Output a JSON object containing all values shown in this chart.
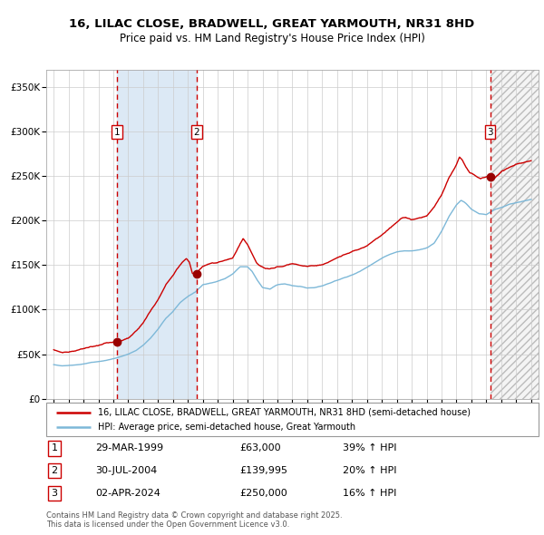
{
  "title_line1": "16, LILAC CLOSE, BRADWELL, GREAT YARMOUTH, NR31 8HD",
  "title_line2": "Price paid vs. HM Land Registry's House Price Index (HPI)",
  "legend_label1": "16, LILAC CLOSE, BRADWELL, GREAT YARMOUTH, NR31 8HD (semi-detached house)",
  "legend_label2": "HPI: Average price, semi-detached house, Great Yarmouth",
  "sale1_date": "29-MAR-1999",
  "sale1_price": 63000,
  "sale1_hpi": "39% ↑ HPI",
  "sale1_x": 1999.23,
  "sale2_date": "30-JUL-2004",
  "sale2_price": 139995,
  "sale2_hpi": "20% ↑ HPI",
  "sale2_x": 2004.58,
  "sale3_date": "02-APR-2024",
  "sale3_price": 250000,
  "sale3_hpi": "16% ↑ HPI",
  "sale3_x": 2024.25,
  "footer": "Contains HM Land Registry data © Crown copyright and database right 2025.\nThis data is licensed under the Open Government Licence v3.0.",
  "hpi_color": "#7db8d8",
  "price_color": "#cc0000",
  "marker_color": "#990000",
  "vline_color": "#cc0000",
  "shade1_color": "#dce9f5",
  "xlim_left": 1994.5,
  "xlim_right": 2027.5,
  "ylim_bottom": 0,
  "ylim_top": 370000,
  "yticks": [
    0,
    50000,
    100000,
    150000,
    200000,
    250000,
    300000,
    350000
  ],
  "xticks": [
    1995,
    1996,
    1997,
    1998,
    1999,
    2000,
    2001,
    2002,
    2003,
    2004,
    2005,
    2006,
    2007,
    2008,
    2009,
    2010,
    2011,
    2012,
    2013,
    2014,
    2015,
    2016,
    2017,
    2018,
    2019,
    2020,
    2021,
    2022,
    2023,
    2024,
    2025,
    2026,
    2027
  ],
  "hpi_anchors": [
    [
      1995.0,
      38000
    ],
    [
      1995.5,
      37000
    ],
    [
      1996.0,
      37500
    ],
    [
      1996.5,
      38000
    ],
    [
      1997.0,
      39000
    ],
    [
      1997.5,
      40500
    ],
    [
      1998.0,
      41500
    ],
    [
      1998.5,
      43000
    ],
    [
      1999.0,
      45000
    ],
    [
      1999.5,
      47000
    ],
    [
      2000.0,
      50000
    ],
    [
      2000.5,
      54000
    ],
    [
      2001.0,
      60000
    ],
    [
      2001.5,
      68000
    ],
    [
      2002.0,
      78000
    ],
    [
      2002.5,
      90000
    ],
    [
      2003.0,
      98000
    ],
    [
      2003.5,
      108000
    ],
    [
      2004.0,
      115000
    ],
    [
      2004.5,
      120000
    ],
    [
      2005.0,
      128000
    ],
    [
      2005.5,
      130000
    ],
    [
      2006.0,
      132000
    ],
    [
      2006.5,
      135000
    ],
    [
      2007.0,
      140000
    ],
    [
      2007.5,
      148000
    ],
    [
      2008.0,
      148000
    ],
    [
      2008.3,
      143000
    ],
    [
      2008.7,
      132000
    ],
    [
      2009.0,
      125000
    ],
    [
      2009.5,
      123000
    ],
    [
      2010.0,
      128000
    ],
    [
      2010.5,
      129000
    ],
    [
      2011.0,
      127000
    ],
    [
      2011.5,
      126000
    ],
    [
      2012.0,
      124000
    ],
    [
      2012.5,
      125000
    ],
    [
      2013.0,
      127000
    ],
    [
      2013.5,
      130000
    ],
    [
      2014.0,
      133000
    ],
    [
      2014.5,
      136000
    ],
    [
      2015.0,
      139000
    ],
    [
      2015.5,
      143000
    ],
    [
      2016.0,
      148000
    ],
    [
      2016.5,
      153000
    ],
    [
      2017.0,
      158000
    ],
    [
      2017.5,
      162000
    ],
    [
      2018.0,
      165000
    ],
    [
      2018.5,
      166000
    ],
    [
      2019.0,
      166000
    ],
    [
      2019.5,
      167000
    ],
    [
      2020.0,
      169000
    ],
    [
      2020.5,
      175000
    ],
    [
      2021.0,
      188000
    ],
    [
      2021.5,
      205000
    ],
    [
      2022.0,
      218000
    ],
    [
      2022.3,
      223000
    ],
    [
      2022.6,
      220000
    ],
    [
      2023.0,
      213000
    ],
    [
      2023.5,
      208000
    ],
    [
      2024.0,
      207000
    ],
    [
      2024.3,
      210000
    ],
    [
      2024.6,
      213000
    ],
    [
      2025.0,
      215000
    ],
    [
      2025.5,
      218000
    ],
    [
      2026.0,
      220000
    ],
    [
      2026.5,
      222000
    ],
    [
      2027.0,
      224000
    ]
  ],
  "prop_anchors": [
    [
      1995.0,
      55000
    ],
    [
      1995.3,
      53000
    ],
    [
      1995.6,
      51000
    ],
    [
      1996.0,
      52000
    ],
    [
      1996.5,
      54000
    ],
    [
      1997.0,
      56000
    ],
    [
      1997.5,
      58000
    ],
    [
      1998.0,
      59000
    ],
    [
      1998.5,
      61000
    ],
    [
      1999.0,
      62500
    ],
    [
      1999.23,
      63000
    ],
    [
      1999.5,
      64000
    ],
    [
      2000.0,
      68000
    ],
    [
      2000.5,
      76000
    ],
    [
      2001.0,
      85000
    ],
    [
      2001.5,
      98000
    ],
    [
      2002.0,
      112000
    ],
    [
      2002.5,
      128000
    ],
    [
      2003.0,
      138000
    ],
    [
      2003.5,
      150000
    ],
    [
      2003.9,
      157000
    ],
    [
      2004.1,
      153000
    ],
    [
      2004.3,
      140000
    ],
    [
      2004.58,
      139995
    ],
    [
      2004.8,
      145000
    ],
    [
      2005.0,
      148000
    ],
    [
      2005.3,
      151000
    ],
    [
      2005.6,
      153000
    ],
    [
      2006.0,
      153000
    ],
    [
      2006.5,
      155000
    ],
    [
      2007.0,
      158000
    ],
    [
      2007.4,
      170000
    ],
    [
      2007.7,
      179000
    ],
    [
      2008.0,
      172000
    ],
    [
      2008.3,
      162000
    ],
    [
      2008.6,
      152000
    ],
    [
      2009.0,
      148000
    ],
    [
      2009.5,
      145000
    ],
    [
      2010.0,
      148000
    ],
    [
      2010.5,
      150000
    ],
    [
      2011.0,
      152000
    ],
    [
      2011.5,
      150000
    ],
    [
      2012.0,
      148000
    ],
    [
      2012.5,
      149000
    ],
    [
      2013.0,
      151000
    ],
    [
      2013.5,
      154000
    ],
    [
      2014.0,
      158000
    ],
    [
      2014.5,
      162000
    ],
    [
      2015.0,
      165000
    ],
    [
      2015.5,
      168000
    ],
    [
      2016.0,
      172000
    ],
    [
      2016.5,
      178000
    ],
    [
      2017.0,
      185000
    ],
    [
      2017.5,
      192000
    ],
    [
      2018.0,
      198000
    ],
    [
      2018.3,
      202000
    ],
    [
      2018.6,
      203000
    ],
    [
      2019.0,
      201000
    ],
    [
      2019.5,
      202000
    ],
    [
      2020.0,
      205000
    ],
    [
      2020.5,
      215000
    ],
    [
      2021.0,
      228000
    ],
    [
      2021.5,
      248000
    ],
    [
      2022.0,
      263000
    ],
    [
      2022.2,
      272000
    ],
    [
      2022.4,
      268000
    ],
    [
      2022.6,
      260000
    ],
    [
      2022.9,
      253000
    ],
    [
      2023.0,
      252000
    ],
    [
      2023.3,
      250000
    ],
    [
      2023.6,
      247000
    ],
    [
      2024.0,
      249000
    ],
    [
      2024.25,
      250000
    ],
    [
      2024.5,
      248000
    ],
    [
      2024.8,
      252000
    ],
    [
      2025.0,
      255000
    ],
    [
      2025.5,
      260000
    ],
    [
      2026.0,
      264000
    ],
    [
      2026.5,
      266000
    ],
    [
      2027.0,
      268000
    ]
  ]
}
